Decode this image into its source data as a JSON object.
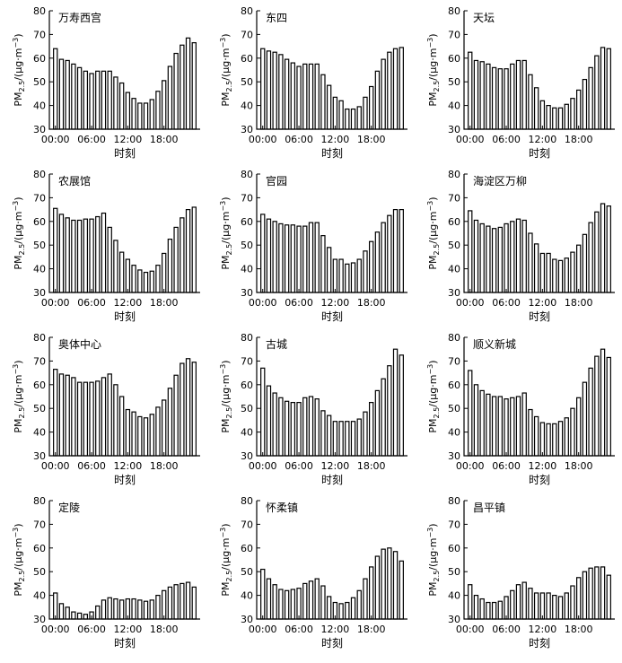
{
  "chart_data": [
    {
      "type": "bar",
      "title": "万寿西宫",
      "categories": [
        "00:00",
        "01:00",
        "02:00",
        "03:00",
        "04:00",
        "05:00",
        "06:00",
        "07:00",
        "08:00",
        "09:00",
        "10:00",
        "11:00",
        "12:00",
        "13:00",
        "14:00",
        "15:00",
        "16:00",
        "17:00",
        "18:00",
        "19:00",
        "20:00",
        "21:00",
        "22:00",
        "23:00"
      ],
      "values": [
        64,
        59.5,
        59,
        57.5,
        56,
        54.5,
        53.5,
        54.5,
        54.5,
        54.5,
        52,
        49.5,
        45.5,
        43,
        41,
        41,
        42.5,
        46,
        50.5,
        56.5,
        62,
        65.5,
        68.5,
        66.5
      ],
      "xticks": [
        "00:00",
        "06:00",
        "12:00",
        "18:00"
      ],
      "xlabel": "时刻",
      "ylabel": "PM",
      "ylabel_sub": "2.5",
      "ylabel_unit": "/(μg·m",
      "ylabel_sup": "−3",
      "ylabel_close": ")",
      "ylim": [
        30,
        80
      ],
      "yticks": [
        "30",
        "40",
        "50",
        "60",
        "70",
        "80"
      ]
    },
    {
      "type": "bar",
      "title": "东四",
      "categories": [
        "00:00",
        "01:00",
        "02:00",
        "03:00",
        "04:00",
        "05:00",
        "06:00",
        "07:00",
        "08:00",
        "09:00",
        "10:00",
        "11:00",
        "12:00",
        "13:00",
        "14:00",
        "15:00",
        "16:00",
        "17:00",
        "18:00",
        "19:00",
        "20:00",
        "21:00",
        "22:00",
        "23:00"
      ],
      "values": [
        64,
        63,
        62.5,
        61.5,
        59.5,
        58,
        56.5,
        57.5,
        57.5,
        57.5,
        53,
        48.5,
        43.5,
        42,
        38.5,
        38.5,
        39.5,
        43.5,
        48,
        54.5,
        59.5,
        62.5,
        64,
        64.5
      ],
      "xticks": [
        "00:00",
        "06:00",
        "12:00",
        "18:00"
      ],
      "xlabel": "时刻",
      "ylabel": "PM",
      "ylabel_sub": "2.5",
      "ylabel_unit": "/(μg·m",
      "ylabel_sup": "−3",
      "ylabel_close": ")",
      "ylim": [
        30,
        80
      ],
      "yticks": [
        "30",
        "40",
        "50",
        "60",
        "70",
        "80"
      ]
    },
    {
      "type": "bar",
      "title": "天坛",
      "categories": [
        "00:00",
        "01:00",
        "02:00",
        "03:00",
        "04:00",
        "05:00",
        "06:00",
        "07:00",
        "08:00",
        "09:00",
        "10:00",
        "11:00",
        "12:00",
        "13:00",
        "14:00",
        "15:00",
        "16:00",
        "17:00",
        "18:00",
        "19:00",
        "20:00",
        "21:00",
        "22:00",
        "23:00"
      ],
      "values": [
        62.5,
        59,
        58.5,
        57.5,
        56,
        55.5,
        55.5,
        57.5,
        59,
        59,
        53,
        47.5,
        42,
        40,
        39,
        39,
        40.5,
        43,
        46.5,
        51,
        56,
        61,
        64.5,
        64
      ],
      "xticks": [
        "00:00",
        "06:00",
        "12:00",
        "18:00"
      ],
      "xlabel": "时刻",
      "ylabel": "PM",
      "ylabel_sub": "2.5",
      "ylabel_unit": "/(μg·m",
      "ylabel_sup": "−3",
      "ylabel_close": ")",
      "ylim": [
        30,
        80
      ],
      "yticks": [
        "30",
        "40",
        "50",
        "60",
        "70",
        "80"
      ]
    },
    {
      "type": "bar",
      "title": "农展馆",
      "categories": [
        "00:00",
        "01:00",
        "02:00",
        "03:00",
        "04:00",
        "05:00",
        "06:00",
        "07:00",
        "08:00",
        "09:00",
        "10:00",
        "11:00",
        "12:00",
        "13:00",
        "14:00",
        "15:00",
        "16:00",
        "17:00",
        "18:00",
        "19:00",
        "20:00",
        "21:00",
        "22:00",
        "23:00"
      ],
      "values": [
        65.5,
        63,
        61.5,
        60.5,
        60.5,
        61,
        61,
        62,
        63.5,
        57.5,
        52,
        47,
        44,
        41.5,
        39.5,
        38.5,
        39,
        41.5,
        46.5,
        52.5,
        57.5,
        61.5,
        65,
        66
      ],
      "xticks": [
        "00:00",
        "06:00",
        "12:00",
        "18:00"
      ],
      "xlabel": "时刻",
      "ylabel": "PM",
      "ylabel_sub": "2.5",
      "ylabel_unit": "/(μg·m",
      "ylabel_sup": "−3",
      "ylabel_close": ")",
      "ylim": [
        30,
        80
      ],
      "yticks": [
        "30",
        "40",
        "50",
        "60",
        "70",
        "80"
      ]
    },
    {
      "type": "bar",
      "title": "官园",
      "categories": [
        "00:00",
        "01:00",
        "02:00",
        "03:00",
        "04:00",
        "05:00",
        "06:00",
        "07:00",
        "08:00",
        "09:00",
        "10:00",
        "11:00",
        "12:00",
        "13:00",
        "14:00",
        "15:00",
        "16:00",
        "17:00",
        "18:00",
        "19:00",
        "20:00",
        "21:00",
        "22:00",
        "23:00"
      ],
      "values": [
        63,
        61,
        60,
        59,
        58.5,
        58.5,
        58,
        58,
        59.5,
        59.5,
        54,
        49,
        44,
        44,
        42,
        42.5,
        44,
        47.5,
        51.5,
        55.5,
        59.5,
        62.5,
        65,
        65
      ],
      "xticks": [
        "00:00",
        "06:00",
        "12:00",
        "18:00"
      ],
      "xlabel": "时刻",
      "ylabel": "PM",
      "ylabel_sub": "2.5",
      "ylabel_unit": "/(μg·m",
      "ylabel_sup": "−3",
      "ylabel_close": ")",
      "ylim": [
        30,
        80
      ],
      "yticks": [
        "30",
        "40",
        "50",
        "60",
        "70",
        "80"
      ]
    },
    {
      "type": "bar",
      "title": "海淀区万柳",
      "categories": [
        "00:00",
        "01:00",
        "02:00",
        "03:00",
        "04:00",
        "05:00",
        "06:00",
        "07:00",
        "08:00",
        "09:00",
        "10:00",
        "11:00",
        "12:00",
        "13:00",
        "14:00",
        "15:00",
        "16:00",
        "17:00",
        "18:00",
        "19:00",
        "20:00",
        "21:00",
        "22:00",
        "23:00"
      ],
      "values": [
        64.5,
        60.5,
        59,
        58,
        57,
        57.5,
        59,
        60,
        61,
        60.5,
        55,
        50.5,
        46.5,
        46.5,
        44,
        43.5,
        44.5,
        47,
        50,
        54.5,
        59.5,
        64,
        67.5,
        66.5
      ],
      "xticks": [
        "00:00",
        "06:00",
        "12:00",
        "18:00"
      ],
      "xlabel": "时刻",
      "ylabel": "PM",
      "ylabel_sub": "2.5",
      "ylabel_unit": "/(μg·m",
      "ylabel_sup": "−3",
      "ylabel_close": ")",
      "ylim": [
        30,
        80
      ],
      "yticks": [
        "30",
        "40",
        "50",
        "60",
        "70",
        "80"
      ]
    },
    {
      "type": "bar",
      "title": "奥体中心",
      "categories": [
        "00:00",
        "01:00",
        "02:00",
        "03:00",
        "04:00",
        "05:00",
        "06:00",
        "07:00",
        "08:00",
        "09:00",
        "10:00",
        "11:00",
        "12:00",
        "13:00",
        "14:00",
        "15:00",
        "16:00",
        "17:00",
        "18:00",
        "19:00",
        "20:00",
        "21:00",
        "22:00",
        "23:00"
      ],
      "values": [
        66.5,
        64.5,
        64,
        63,
        61,
        61,
        61,
        61.5,
        63,
        64.5,
        60,
        55,
        49.5,
        48.5,
        46.5,
        46,
        47.5,
        50.5,
        53.5,
        58.5,
        64,
        69,
        71,
        69.5
      ],
      "xticks": [
        "00:00",
        "06:00",
        "12:00",
        "18:00"
      ],
      "xlabel": "时刻",
      "ylabel": "PM",
      "ylabel_sub": "2.5",
      "ylabel_unit": "/(μg·m",
      "ylabel_sup": "−3",
      "ylabel_close": ")",
      "ylim": [
        30,
        80
      ],
      "yticks": [
        "30",
        "40",
        "50",
        "60",
        "70",
        "80"
      ]
    },
    {
      "type": "bar",
      "title": "古城",
      "categories": [
        "00:00",
        "01:00",
        "02:00",
        "03:00",
        "04:00",
        "05:00",
        "06:00",
        "07:00",
        "08:00",
        "09:00",
        "10:00",
        "11:00",
        "12:00",
        "13:00",
        "14:00",
        "15:00",
        "16:00",
        "17:00",
        "18:00",
        "19:00",
        "20:00",
        "21:00",
        "22:00",
        "23:00"
      ],
      "values": [
        67,
        59.5,
        56.5,
        54.5,
        53,
        52.5,
        52.5,
        54.5,
        55,
        54,
        49,
        47,
        44.5,
        44.5,
        44.5,
        44.5,
        45.5,
        48.5,
        52.5,
        57.5,
        62.5,
        68,
        75,
        72.5
      ],
      "xticks": [
        "00:00",
        "06:00",
        "12:00",
        "18:00"
      ],
      "xlabel": "时刻",
      "ylabel": "PM",
      "ylabel_sub": "2.5",
      "ylabel_unit": "/(μg·m",
      "ylabel_sup": "−3",
      "ylabel_close": ")",
      "ylim": [
        30,
        80
      ],
      "yticks": [
        "30",
        "40",
        "50",
        "60",
        "70",
        "80"
      ]
    },
    {
      "type": "bar",
      "title": "顺义新城",
      "categories": [
        "00:00",
        "01:00",
        "02:00",
        "03:00",
        "04:00",
        "05:00",
        "06:00",
        "07:00",
        "08:00",
        "09:00",
        "10:00",
        "11:00",
        "12:00",
        "13:00",
        "14:00",
        "15:00",
        "16:00",
        "17:00",
        "18:00",
        "19:00",
        "20:00",
        "21:00",
        "22:00",
        "23:00"
      ],
      "values": [
        66,
        60,
        57.5,
        56,
        55,
        55,
        54,
        54.5,
        55,
        56.5,
        49.5,
        46.5,
        44,
        43.5,
        43.5,
        44.5,
        46,
        50,
        54.5,
        61,
        67,
        72,
        75,
        71.5
      ],
      "xticks": [
        "00:00",
        "06:00",
        "12:00",
        "18:00"
      ],
      "xlabel": "时刻",
      "ylabel": "PM",
      "ylabel_sub": "2.5",
      "ylabel_unit": "/(μg·m",
      "ylabel_sup": "−3",
      "ylabel_close": ")",
      "ylim": [
        30,
        80
      ],
      "yticks": [
        "30",
        "40",
        "50",
        "60",
        "70",
        "80"
      ]
    },
    {
      "type": "bar",
      "title": "定陵",
      "categories": [
        "00:00",
        "01:00",
        "02:00",
        "03:00",
        "04:00",
        "05:00",
        "06:00",
        "07:00",
        "08:00",
        "09:00",
        "10:00",
        "11:00",
        "12:00",
        "13:00",
        "14:00",
        "15:00",
        "16:00",
        "17:00",
        "18:00",
        "19:00",
        "20:00",
        "21:00",
        "22:00",
        "23:00"
      ],
      "values": [
        41,
        36.5,
        35,
        33,
        32.5,
        32,
        33,
        35.5,
        38,
        39,
        38.5,
        38,
        38.5,
        38.5,
        38,
        37.5,
        38,
        40,
        42,
        43.5,
        44.5,
        45,
        45.5,
        43.5
      ],
      "xticks": [
        "00:00",
        "06:00",
        "12:00",
        "18:00"
      ],
      "xlabel": "时刻",
      "ylabel": "PM",
      "ylabel_sub": "2.5",
      "ylabel_unit": "/(μg·m",
      "ylabel_sup": "−3",
      "ylabel_close": ")",
      "ylim": [
        30,
        80
      ],
      "yticks": [
        "30",
        "40",
        "50",
        "60",
        "70",
        "80"
      ]
    },
    {
      "type": "bar",
      "title": "怀柔镇",
      "categories": [
        "00:00",
        "01:00",
        "02:00",
        "03:00",
        "04:00",
        "05:00",
        "06:00",
        "07:00",
        "08:00",
        "09:00",
        "10:00",
        "11:00",
        "12:00",
        "13:00",
        "14:00",
        "15:00",
        "16:00",
        "17:00",
        "18:00",
        "19:00",
        "20:00",
        "21:00",
        "22:00",
        "23:00"
      ],
      "values": [
        51,
        47,
        44.5,
        42.5,
        42,
        42.5,
        43,
        45,
        46,
        47,
        44,
        39.5,
        37,
        36.5,
        37,
        39,
        42,
        47,
        52,
        56.5,
        59.5,
        60,
        58.5,
        54.5
      ],
      "xticks": [
        "00:00",
        "06:00",
        "12:00",
        "18:00"
      ],
      "xlabel": "时刻",
      "ylabel": "PM",
      "ylabel_sub": "2.5",
      "ylabel_unit": "/(μg·m",
      "ylabel_sup": "−3",
      "ylabel_close": ")",
      "ylim": [
        30,
        80
      ],
      "yticks": [
        "30",
        "40",
        "50",
        "60",
        "70",
        "80"
      ]
    },
    {
      "type": "bar",
      "title": "昌平镇",
      "categories": [
        "00:00",
        "01:00",
        "02:00",
        "03:00",
        "04:00",
        "05:00",
        "06:00",
        "07:00",
        "08:00",
        "09:00",
        "10:00",
        "11:00",
        "12:00",
        "13:00",
        "14:00",
        "15:00",
        "16:00",
        "17:00",
        "18:00",
        "19:00",
        "20:00",
        "21:00",
        "22:00",
        "23:00"
      ],
      "values": [
        44.5,
        40,
        38.5,
        37,
        37,
        37.5,
        39.5,
        42,
        44.5,
        45.5,
        43,
        41,
        41,
        41,
        40,
        39.5,
        41,
        44,
        47.5,
        50,
        51.5,
        52,
        52,
        48.5
      ],
      "xticks": [
        "00:00",
        "06:00",
        "12:00",
        "18:00"
      ],
      "xlabel": "时刻",
      "ylabel": "PM",
      "ylabel_sub": "2.5",
      "ylabel_unit": "/(μg·m",
      "ylabel_sup": "−3",
      "ylabel_close": ")",
      "ylim": [
        30,
        80
      ],
      "yticks": [
        "30",
        "40",
        "50",
        "60",
        "70",
        "80"
      ]
    }
  ]
}
